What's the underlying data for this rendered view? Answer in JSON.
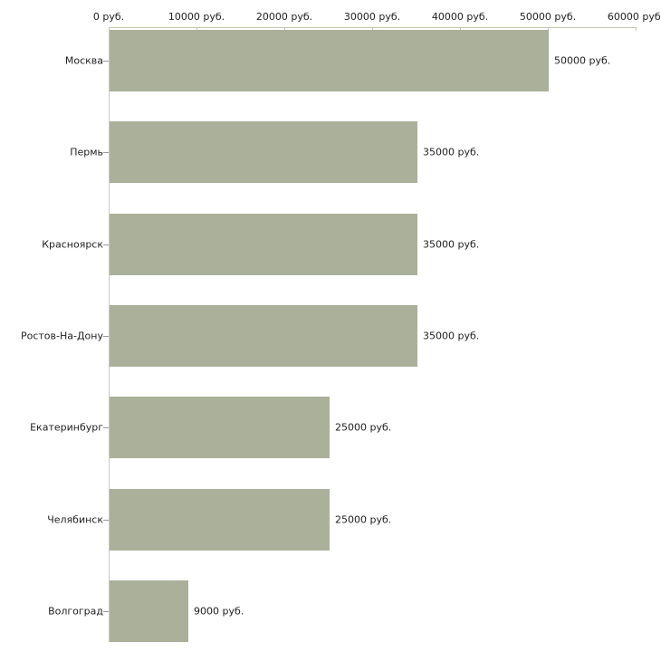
{
  "page": {
    "background": "#ffffff"
  },
  "chart_data": {
    "type": "bar",
    "orientation": "horizontal",
    "title": "",
    "unit": "руб.",
    "categories": [
      "Москва",
      "Пермь",
      "Красноярск",
      "Ростов-На-Дону",
      "Екатеринбург",
      "Челябинск",
      "Волгоград"
    ],
    "values": [
      50000,
      35000,
      35000,
      35000,
      25000,
      25000,
      9000
    ],
    "value_labels": [
      "50000 руб.",
      "35000 руб.",
      "35000 руб.",
      "35000 руб.",
      "25000 руб.",
      "25000 руб.",
      "9000 руб."
    ],
    "x_tick_values": [
      0,
      10000,
      20000,
      30000,
      40000,
      50000,
      60000
    ],
    "x_tick_labels": [
      "0 руб.",
      "10000 руб.",
      "20000 руб.",
      "30000 руб.",
      "40000 руб.",
      "50000 руб.",
      "60000 руб."
    ],
    "xlim": [
      0,
      60000
    ],
    "axis_position": "top",
    "grid": false,
    "legend": null,
    "colors": {
      "bar": "#abb09a",
      "axis_line": "#c3c6b0",
      "y_axis_line": "#c9c9c9",
      "category_tick": "#9a9a94",
      "text": "#1f1f1f",
      "background": "#ffffff"
    }
  }
}
